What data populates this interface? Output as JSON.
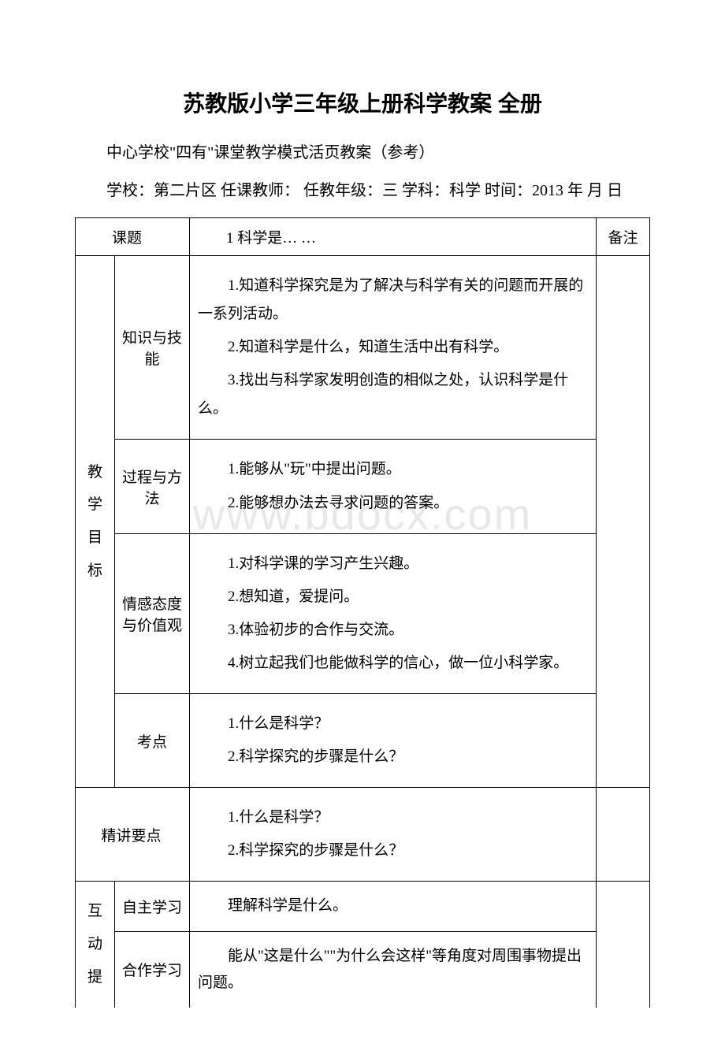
{
  "page": {
    "title": "苏教版小学三年级上册科学教案 全册",
    "subtitle": "中心学校\"四有\"课堂教学模式活页教案（参考）",
    "info_line": "学校：第二片区 任课教师：  任教年级：三 学科：科学 时间：2013 年  月 日",
    "watermark": "www.bdocx.com"
  },
  "table": {
    "header": {
      "lesson_label": "课题",
      "lesson_title": "1 科学是… …",
      "notes_label": "备注"
    },
    "goals_label": "教学目标",
    "rows": {
      "knowledge": {
        "label": "知识与技能",
        "items": [
          "1.知道科学探究是为了解决与科学有关的问题而开展的一系列活动。",
          "2.知道科学是什么，知道生活中出有科学。",
          "3.找出与科学家发明创造的相似之处，认识科学是什么。"
        ]
      },
      "process": {
        "label": "过程与方法",
        "items": [
          "1.能够从\"玩\"中提出问题。",
          "2.能够想办法去寻求问题的答案。"
        ]
      },
      "attitude": {
        "label": "情感态度与价值观",
        "items": [
          "1.对科学课的学习产生兴趣。",
          "2.想知道，爱提问。",
          "3.体验初步的合作与交流。",
          "4.树立起我们也能做科学的信心，做一位小科学家。"
        ]
      },
      "exam": {
        "label": "考点",
        "items": [
          "1.什么是科学？",
          "2.科学探究的步骤是什么？"
        ]
      }
    },
    "keypoints": {
      "label": "精讲要点",
      "items": [
        "1.什么是科学？",
        "2.科学探究的步骤是什么？"
      ]
    },
    "interaction": {
      "label": "互动提",
      "self_study": {
        "label": "自主学习",
        "content": "理解科学是什么。"
      },
      "coop_study": {
        "label": "合作学习",
        "content": "能从\"这是什么\"\"为什么会这样\"等角度对周围事物提出问题。"
      }
    }
  }
}
